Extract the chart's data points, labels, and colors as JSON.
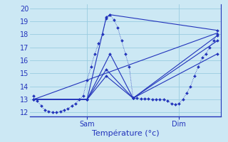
{
  "background_color": "#cce8f4",
  "grid_color": "#99cce0",
  "line_color": "#2233bb",
  "xlabel_text": "Température (°c)",
  "ylim": [
    11.7,
    20.3
  ],
  "xlim": [
    -1,
    49
  ],
  "sam_x": 14,
  "dim_x": 38,
  "yticks": [
    12,
    13,
    14,
    15,
    16,
    17,
    18,
    19,
    20
  ],
  "series0_x": [
    0,
    1,
    2,
    3,
    4,
    5,
    6,
    7,
    8,
    9,
    10,
    11,
    12,
    13,
    14,
    15,
    16,
    17,
    18,
    19,
    20,
    21,
    22,
    23,
    24,
    25,
    26,
    27,
    28,
    29,
    30,
    31,
    32,
    33,
    34,
    35,
    36,
    37,
    38,
    39,
    40,
    41,
    42,
    43,
    44,
    45,
    46,
    47,
    48
  ],
  "series0_y": [
    13.3,
    12.9,
    12.5,
    12.2,
    12.1,
    12.0,
    12.0,
    12.1,
    12.2,
    12.3,
    12.5,
    12.7,
    13.0,
    13.3,
    14.5,
    15.5,
    16.5,
    17.3,
    18.0,
    19.2,
    19.5,
    19.1,
    18.5,
    17.5,
    16.5,
    15.5,
    13.1,
    13.1,
    13.05,
    13.05,
    13.05,
    13.0,
    13.0,
    13.0,
    13.0,
    12.9,
    12.7,
    12.6,
    12.7,
    13.0,
    13.5,
    14.0,
    14.8,
    15.5,
    16.2,
    16.5,
    17.0,
    17.5,
    18.0
  ],
  "series1_x": [
    0,
    14,
    19,
    20,
    48
  ],
  "series1_y": [
    13.0,
    13.0,
    19.3,
    19.5,
    18.3
  ],
  "series2_x": [
    0,
    14,
    20,
    26,
    48
  ],
  "series2_y": [
    13.0,
    13.0,
    16.5,
    13.1,
    17.9
  ],
  "series3_x": [
    0,
    14,
    19,
    26,
    48
  ],
  "series3_y": [
    13.0,
    13.0,
    15.3,
    13.1,
    17.5
  ],
  "series4_x": [
    0,
    14,
    19,
    26,
    48
  ],
  "series4_y": [
    13.0,
    13.0,
    14.8,
    13.1,
    16.5
  ],
  "series5_x": [
    0,
    48
  ],
  "series5_y": [
    13.0,
    18.1
  ]
}
